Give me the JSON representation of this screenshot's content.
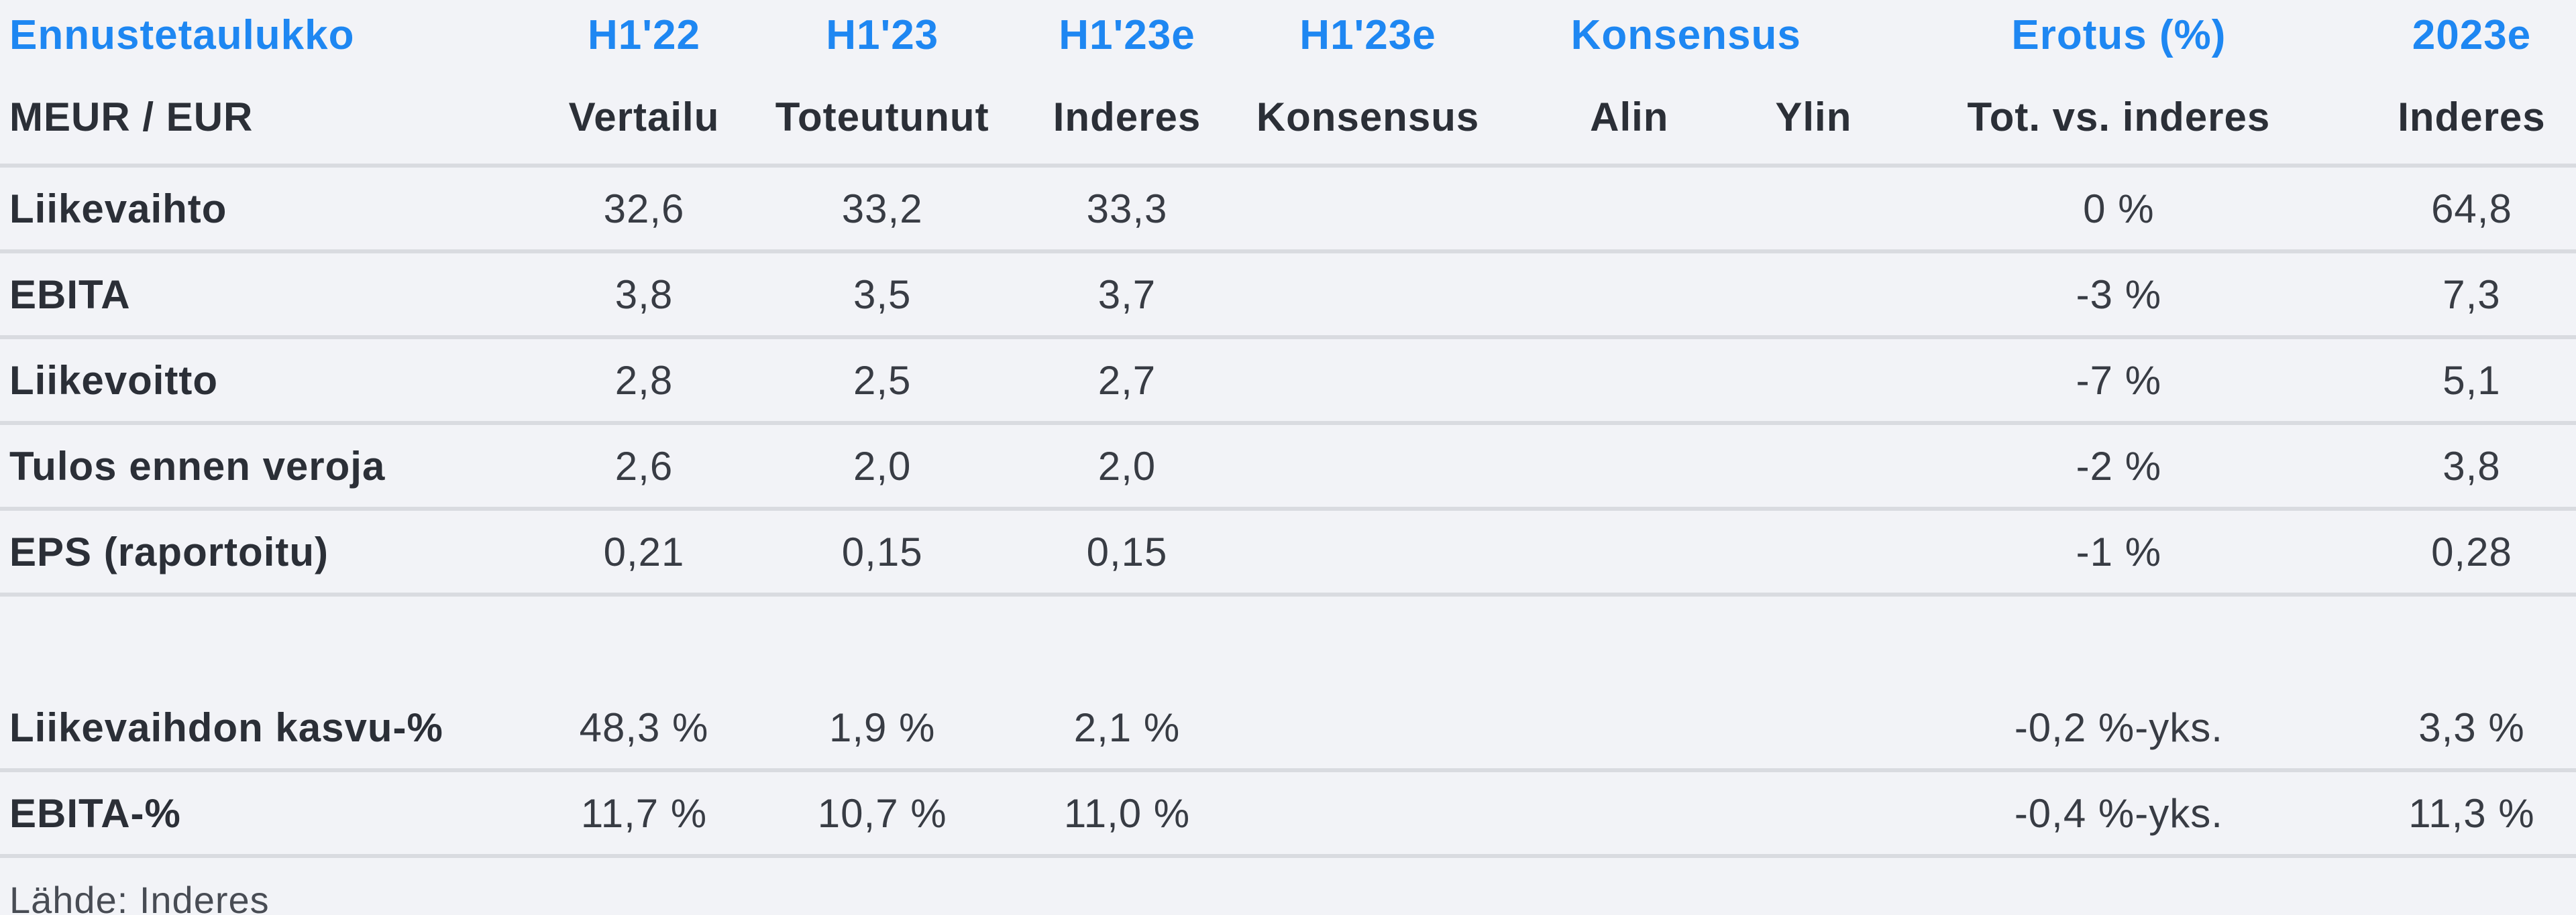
{
  "colors": {
    "background": "#f2f3f7",
    "accent_blue": "#1e87f2",
    "text_dark": "#2b2f37",
    "text_number": "#383c44",
    "separator": "#d9dbe0",
    "source_text": "#484c54"
  },
  "table": {
    "title": "Ennustetaulukko",
    "unit_label": "MEUR / EUR",
    "period_headers": [
      "H1'22",
      "H1'23",
      "H1'23e",
      "H1'23e",
      "Konsensus",
      "Erotus (%)",
      "2023e"
    ],
    "sub_headers": [
      "Vertailu",
      "Toteutunut",
      "Inderes",
      "Konsensus",
      "Alin",
      "Ylin",
      "Tot. vs. inderes",
      "Inderes"
    ],
    "rows": [
      {
        "label": "Liikevaihto",
        "values": [
          "32,6",
          "33,2",
          "33,3",
          "",
          "",
          "",
          "0 %",
          "64,8"
        ],
        "spacer": false
      },
      {
        "label": "EBITA",
        "values": [
          "3,8",
          "3,5",
          "3,7",
          "",
          "",
          "",
          "-3 %",
          "7,3"
        ],
        "spacer": false
      },
      {
        "label": "Liikevoitto",
        "values": [
          "2,8",
          "2,5",
          "2,7",
          "",
          "",
          "",
          "-7 %",
          "5,1"
        ],
        "spacer": false
      },
      {
        "label": "Tulos ennen veroja",
        "values": [
          "2,6",
          "2,0",
          "2,0",
          "",
          "",
          "",
          "-2 %",
          "3,8"
        ],
        "spacer": false
      },
      {
        "label": "EPS (raportoitu)",
        "values": [
          "0,21",
          "0,15",
          "0,15",
          "",
          "",
          "",
          "-1 %",
          "0,28"
        ],
        "spacer": false
      },
      {
        "label": "",
        "values": [
          "",
          "",
          "",
          "",
          "",
          "",
          "",
          ""
        ],
        "spacer": true
      },
      {
        "label": "Liikevaihdon kasvu-%",
        "values": [
          "48,3 %",
          "1,9 %",
          "2,1 %",
          "",
          "",
          "",
          "-0,2 %-yks.",
          "3,3 %"
        ],
        "spacer": false
      },
      {
        "label": "EBITA-%",
        "values": [
          "11,7 %",
          "10,7 %",
          "11,0 %",
          "",
          "",
          "",
          "-0,4 %-yks.",
          "11,3 %"
        ],
        "spacer": false
      }
    ],
    "source": "Lähde: Inderes"
  },
  "chart_data": {
    "type": "table",
    "title": "Ennustetaulukko",
    "unit": "MEUR / EUR",
    "columns": [
      "H1'22 Vertailu",
      "H1'23 Toteutunut",
      "H1'23e Inderes",
      "H1'23e Konsensus",
      "Konsensus Alin",
      "Konsensus Ylin",
      "Erotus (%) Tot. vs. inderes",
      "2023e Inderes"
    ],
    "rows": [
      {
        "label": "Liikevaihto",
        "values": [
          "32,6",
          "33,2",
          "33,3",
          null,
          null,
          null,
          "0 %",
          "64,8"
        ]
      },
      {
        "label": "EBITA",
        "values": [
          "3,8",
          "3,5",
          "3,7",
          null,
          null,
          null,
          "-3 %",
          "7,3"
        ]
      },
      {
        "label": "Liikevoitto",
        "values": [
          "2,8",
          "2,5",
          "2,7",
          null,
          null,
          null,
          "-7 %",
          "5,1"
        ]
      },
      {
        "label": "Tulos ennen veroja",
        "values": [
          "2,6",
          "2,0",
          "2,0",
          null,
          null,
          null,
          "-2 %",
          "3,8"
        ]
      },
      {
        "label": "EPS (raportoitu)",
        "values": [
          "0,21",
          "0,15",
          "0,15",
          null,
          null,
          null,
          "-1 %",
          "0,28"
        ]
      },
      {
        "label": "Liikevaihdon kasvu-%",
        "values": [
          "48,3 %",
          "1,9 %",
          "2,1 %",
          null,
          null,
          null,
          "-0,2 %-yks.",
          "3,3 %"
        ]
      },
      {
        "label": "EBITA-%",
        "values": [
          "11,7 %",
          "10,7 %",
          "11,0 %",
          null,
          null,
          null,
          "-0,4 %-yks.",
          "11,3 %"
        ]
      }
    ],
    "source": "Lähde: Inderes",
    "layout": {
      "grid": "horizontal-separators",
      "legend": "none"
    }
  }
}
